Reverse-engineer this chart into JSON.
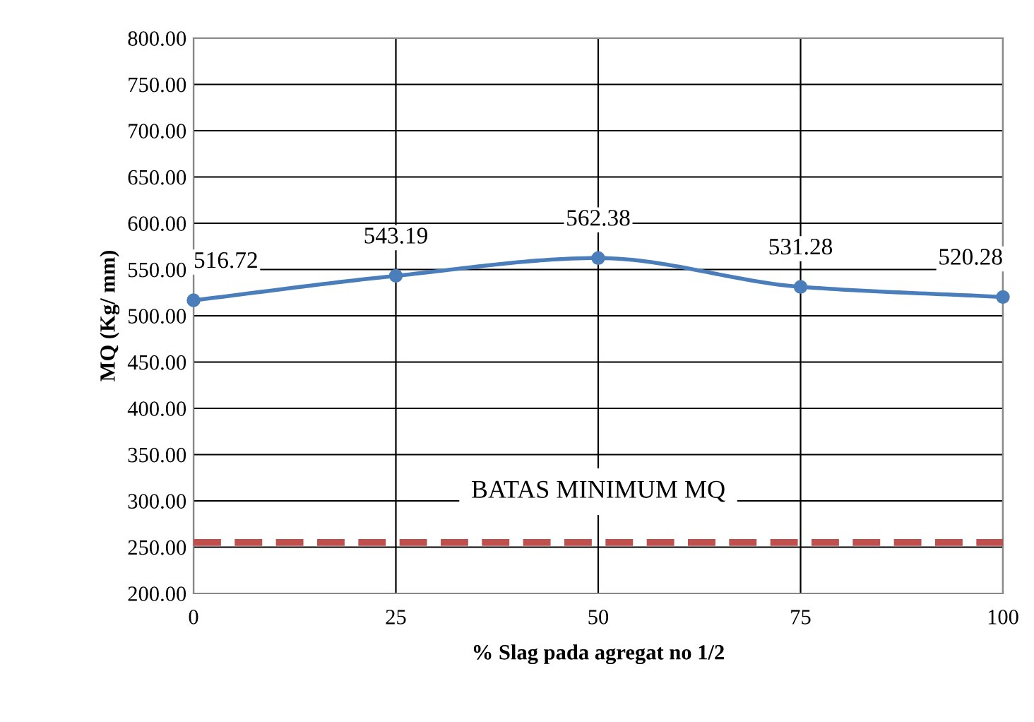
{
  "chart_data": {
    "type": "line",
    "xlabel": "% Slag pada agregat no 1/2",
    "ylabel": "MQ (Kg/ mm)",
    "x": [
      0,
      25,
      50,
      75,
      100
    ],
    "series": [
      {
        "color": "#4a7ebb",
        "values": [
          516.72,
          543.19,
          562.38,
          531.28,
          520.28
        ]
      }
    ],
    "xlim": [
      0,
      100
    ],
    "xticks": [
      0,
      25,
      50,
      75,
      100
    ],
    "ylim": [
      200,
      800
    ],
    "yticks": [
      {
        "value": 200,
        "label": "200.00"
      },
      {
        "value": 250,
        "label": "250.00"
      },
      {
        "value": 300,
        "label": "300.00"
      },
      {
        "value": 350,
        "label": "350.00"
      },
      {
        "value": 400,
        "label": "400.00"
      },
      {
        "value": 450,
        "label": "450.00"
      },
      {
        "value": 500,
        "label": "500.00"
      },
      {
        "value": 550,
        "label": "550.00"
      },
      {
        "value": 600,
        "label": "600.00"
      },
      {
        "value": 650,
        "label": "650.00"
      },
      {
        "value": 700,
        "label": "700.00"
      },
      {
        "value": 750,
        "label": "750.00"
      },
      {
        "value": 800,
        "label": "800.00"
      }
    ],
    "ref_lines": [
      {
        "axis": "y",
        "value": 255,
        "label": "BATAS MINIMUM MQ",
        "color": "#c0504d",
        "line_style": "dashed"
      }
    ],
    "grid": true,
    "marker": "circle",
    "line_style": "solid",
    "data_labels": true,
    "legend": false
  }
}
